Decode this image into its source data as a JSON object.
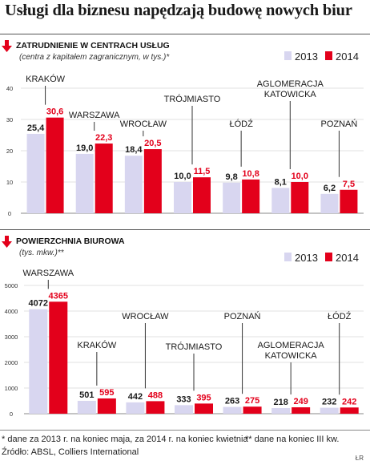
{
  "headline": "Usługi dla biznesu napędzają budowę nowych biur",
  "footnote_1": "* dane za 2013 r. na koniec maja, za 2014 r. na koniec kwietnia",
  "footnote_2": "** dane na koniec III kw.",
  "source": "Źródło: ABSL, Colliers International",
  "signature": "ŁR",
  "colors": {
    "y2013": "#d8d6f0",
    "y2014": "#e3001b",
    "dark_label": "#1a1a1a",
    "red_label": "#e3001b"
  },
  "chart_data": [
    {
      "type": "bar",
      "title": "ZATRUDNIENIE W CENTRACH USŁUG",
      "subtitle": "(centra z kapitałem zagranicznym, w tys.)*",
      "legend": [
        "2013",
        "2014"
      ],
      "legend_position": "top-right",
      "ylim": [
        0,
        40
      ],
      "yticks": [
        0,
        10,
        20,
        30,
        40
      ],
      "grid": true,
      "categories": [
        "KRAKÓW",
        "WARSZAWA",
        "WROCŁAW",
        "TRÓJMIASTO",
        "ŁÓDŹ",
        "AGLOMERACJA KATOWICKA",
        "POZNAŃ"
      ],
      "category_labels": [
        [
          "KRAKÓW"
        ],
        [
          "WARSZAWA"
        ],
        [
          "WROCŁAW"
        ],
        [
          "TRÓJMIASTO"
        ],
        [
          "ŁÓDŹ"
        ],
        [
          "AGLOMERACJA",
          "KATOWICKA"
        ],
        [
          "POZNAŃ"
        ]
      ],
      "series": [
        {
          "name": "2013",
          "values": [
            25.4,
            19.0,
            18.4,
            10.0,
            9.8,
            8.1,
            6.2
          ],
          "labels": [
            "25,4",
            "19,0",
            "18,4",
            "10,0",
            "9,8",
            "8,1",
            "6,2"
          ]
        },
        {
          "name": "2014",
          "values": [
            30.6,
            22.3,
            20.5,
            11.5,
            10.8,
            10.0,
            7.5
          ],
          "labels": [
            "30,6",
            "22,3",
            "20,5",
            "11,5",
            "10,8",
            "10,0",
            "7,5"
          ]
        }
      ]
    },
    {
      "type": "bar",
      "title": "POWIERZCHNIA BIUROWA",
      "subtitle": "(tys. mkw.)**",
      "legend": [
        "2013",
        "2014"
      ],
      "legend_position": "top-right",
      "ylim": [
        0,
        5000
      ],
      "yticks": [
        0,
        1000,
        2000,
        3000,
        4000,
        5000
      ],
      "grid": true,
      "categories": [
        "WARSZAWA",
        "KRAKÓW",
        "WROCŁAW",
        "TRÓJMIASTO",
        "POZNAŃ",
        "AGLOMERACJA KATOWICKA",
        "ŁÓDŹ"
      ],
      "category_labels": [
        [
          "WARSZAWA"
        ],
        [
          "KRAKÓW"
        ],
        [
          "WROCŁAW"
        ],
        [
          "TRÓJMIASTO"
        ],
        [
          "POZNAŃ"
        ],
        [
          "AGLOMERACJA",
          "KATOWICKA"
        ],
        [
          "ŁÓDŹ"
        ]
      ],
      "series": [
        {
          "name": "2013",
          "values": [
            4072,
            501,
            442,
            333,
            263,
            218,
            232
          ],
          "labels": [
            "4072",
            "501",
            "442",
            "333",
            "263",
            "218",
            "232"
          ]
        },
        {
          "name": "2014",
          "values": [
            4365,
            595,
            488,
            395,
            275,
            249,
            242
          ],
          "labels": [
            "4365",
            "595",
            "488",
            "395",
            "275",
            "249",
            "242"
          ]
        }
      ]
    }
  ]
}
